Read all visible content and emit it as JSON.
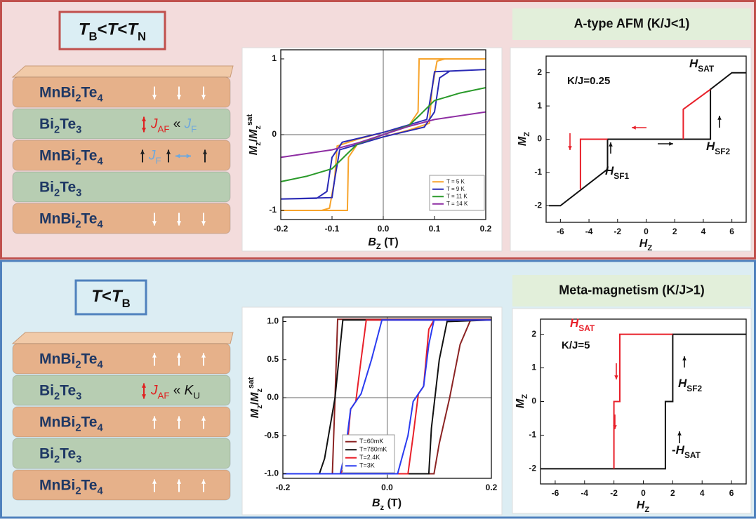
{
  "panels": [
    {
      "label": [
        {
          "it": "T"
        },
        {
          "sub": "B"
        },
        {
          "t": "<"
        },
        {
          "it": "T"
        },
        {
          "t": "<"
        },
        {
          "it": "T"
        },
        {
          "sub": "N"
        }
      ],
      "layers": [
        {
          "name": [
            {
              "t": "MnBi"
            },
            {
              "sub": "2"
            },
            {
              "t": "Te"
            },
            {
              "sub": "4"
            }
          ],
          "color": "#e6b18a"
        },
        {
          "name": [
            {
              "t": "Bi"
            },
            {
              "sub": "2"
            },
            {
              "t": "Te"
            },
            {
              "sub": "3"
            }
          ],
          "color": "#b7cdb2",
          "note": [
            {
              "it": "J",
              "color": "#e02020"
            },
            {
              "sub": "AF",
              "color": "#e02020"
            },
            {
              "t": " « "
            },
            {
              "it": "J",
              "color": "#6fa8dc"
            },
            {
              "sub": "F",
              "color": "#6fa8dc"
            }
          ]
        },
        {
          "name": [
            {
              "t": "MnBi"
            },
            {
              "sub": "2"
            },
            {
              "t": "Te"
            },
            {
              "sub": "4"
            }
          ],
          "color": "#e6b18a",
          "note": [
            {
              "it": "J",
              "color": "#6fa8dc"
            },
            {
              "sub": "F",
              "color": "#6fa8dc"
            }
          ]
        },
        {
          "name": [
            {
              "t": "Bi"
            },
            {
              "sub": "2"
            },
            {
              "t": "Te"
            },
            {
              "sub": "3"
            }
          ],
          "color": "#b7cdb2"
        },
        {
          "name": [
            {
              "t": "MnBi"
            },
            {
              "sub": "2"
            },
            {
              "t": "Te"
            },
            {
              "sub": "4"
            }
          ],
          "color": "#e6b18a"
        }
      ]
    },
    {
      "label": [
        {
          "it": "T"
        },
        {
          "t": "<"
        },
        {
          "it": "T"
        },
        {
          "sub": "B"
        }
      ],
      "layers": [
        {
          "name": [
            {
              "t": "MnBi"
            },
            {
              "sub": "2"
            },
            {
              "t": "Te"
            },
            {
              "sub": "4"
            }
          ],
          "color": "#e6b18a"
        },
        {
          "name": [
            {
              "t": "Bi"
            },
            {
              "sub": "2"
            },
            {
              "t": "Te"
            },
            {
              "sub": "3"
            }
          ],
          "color": "#b7cdb2",
          "note": [
            {
              "it": "J",
              "color": "#e02020"
            },
            {
              "sub": "AF",
              "color": "#e02020"
            },
            {
              "t": " « "
            },
            {
              "it": "K"
            },
            {
              "sub": "U"
            }
          ]
        },
        {
          "name": [
            {
              "t": "MnBi"
            },
            {
              "sub": "2"
            },
            {
              "t": "Te"
            },
            {
              "sub": "4"
            }
          ],
          "color": "#e6b18a"
        },
        {
          "name": [
            {
              "t": "Bi"
            },
            {
              "sub": "2"
            },
            {
              "t": "Te"
            },
            {
              "sub": "3"
            }
          ],
          "color": "#b7cdb2"
        },
        {
          "name": [
            {
              "t": "MnBi"
            },
            {
              "sub": "2"
            },
            {
              "t": "Te"
            },
            {
              "sub": "4"
            }
          ],
          "color": "#e6b18a"
        }
      ]
    }
  ],
  "chart_data": [
    {
      "type": "line",
      "x_label": [
        {
          "it": "B"
        },
        {
          "sub": "Z"
        },
        {
          "t": " (T)"
        }
      ],
      "y_label": [
        {
          "it": "M"
        },
        {
          "sub": "z"
        },
        {
          "t": "/"
        },
        {
          "it": "M"
        },
        {
          "sub": "z"
        },
        {
          "sup": "sat"
        }
      ],
      "xlim": [
        -0.2,
        0.2
      ],
      "ylim": [
        -1.12,
        1.12
      ],
      "xticks": [
        -0.2,
        -0.1,
        {
          "value": 0,
          "label": "0.0"
        },
        0.1,
        0.2
      ],
      "yticks": [
        -1,
        0,
        1
      ],
      "zero_lines": true,
      "legend": "lower right",
      "series": [
        {
          "name": "T = 5 K",
          "color": "#f7a42c",
          "x": [
            -0.2,
            -0.07,
            -0.068,
            -0.05,
            0,
            0.05,
            0.09,
            0.095,
            0.105,
            0.12,
            0.2,
            0.2,
            0.07,
            0.068,
            0.05,
            0,
            -0.05,
            -0.09,
            -0.095,
            -0.105,
            -0.12,
            -0.2
          ],
          "values": [
            -1,
            -1,
            -0.3,
            -0.12,
            -0.03,
            0.06,
            0.15,
            0.6,
            0.97,
            1,
            1,
            1,
            1,
            0.3,
            0.12,
            0.03,
            -0.06,
            -0.15,
            -0.6,
            -0.97,
            -1,
            -1
          ]
        },
        {
          "name": "T = 9 K",
          "color": "#2a2ab5",
          "x": [
            -0.2,
            -0.1,
            -0.095,
            -0.085,
            0,
            0.08,
            0.1,
            0.11,
            0.13,
            0.2,
            0.2,
            0.1,
            0.095,
            0.085,
            0,
            -0.08,
            -0.1,
            -0.11,
            -0.13,
            -0.2
          ],
          "values": [
            -0.85,
            -0.83,
            -0.6,
            -0.2,
            -0.03,
            0.1,
            0.3,
            0.75,
            0.84,
            0.86,
            0.86,
            0.83,
            0.6,
            0.2,
            0.03,
            -0.1,
            -0.3,
            -0.75,
            -0.84,
            -0.85
          ]
        },
        {
          "name": "T = 11 K",
          "color": "#2a9a2a",
          "x": [
            -0.2,
            -0.15,
            -0.1,
            -0.07,
            -0.05,
            0,
            0.05,
            0.07,
            0.1,
            0.15,
            0.2
          ],
          "values": [
            -0.62,
            -0.55,
            -0.45,
            -0.25,
            -0.12,
            0,
            0.12,
            0.25,
            0.45,
            0.55,
            0.62
          ]
        },
        {
          "name": "T = 14 K",
          "color": "#8e2ea3",
          "x": [
            -0.2,
            -0.1,
            -0.05,
            0,
            0.05,
            0.1,
            0.2
          ],
          "values": [
            -0.3,
            -0.2,
            -0.11,
            0,
            0.11,
            0.2,
            0.3
          ]
        }
      ]
    },
    {
      "type": "line",
      "title": "A-type AFM (K/J<1)",
      "x_label": [
        {
          "it": "H"
        },
        {
          "sub": "Z"
        }
      ],
      "y_label": [
        {
          "it": "M"
        },
        {
          "sub": "Z"
        }
      ],
      "xlim": [
        -7,
        7
      ],
      "ylim": [
        -2.5,
        2.5
      ],
      "xticks": [
        -6,
        -4,
        -2,
        0,
        2,
        4,
        6
      ],
      "yticks": [
        -2,
        -1,
        0,
        1,
        2
      ],
      "annotations": [
        [
          {
            "t": "K/J=0.25"
          }
        ],
        [
          {
            "it": "H"
          },
          {
            "sub": "SAT"
          }
        ],
        [
          {
            "it": "H"
          },
          {
            "sub": "SF1"
          }
        ],
        [
          {
            "it": "H"
          },
          {
            "sub": "SF2"
          }
        ]
      ],
      "series": [
        {
          "color": "#111111",
          "x": [
            -6.8,
            -6,
            -2.7,
            -2.7,
            4.5,
            4.5,
            6,
            7
          ],
          "values": [
            -2,
            -2,
            -0.9,
            0,
            0,
            1.5,
            2,
            2
          ]
        },
        {
          "color": "#e8202a",
          "x": [
            -4.6,
            -4.6,
            -2.7,
            null,
            2.6,
            2.6,
            4.5
          ],
          "values": [
            -1.5,
            0,
            0,
            null,
            0,
            0.9,
            1.5
          ]
        }
      ]
    },
    {
      "type": "line",
      "x_label": [
        {
          "it": "B"
        },
        {
          "sub": "z"
        },
        {
          "t": " (T)"
        }
      ],
      "y_label": [
        {
          "it": "M"
        },
        {
          "sub": "z"
        },
        {
          "t": "/"
        },
        {
          "it": "M"
        },
        {
          "sub": "z"
        },
        {
          "sup": "sat"
        }
      ],
      "xlim": [
        -0.2,
        0.2
      ],
      "ylim": [
        -1.06,
        1.06
      ],
      "xticks": [
        -0.2,
        {
          "value": 0,
          "label": "0.0"
        },
        0.2
      ],
      "yticks": [
        {
          "value": -1,
          "label": "-1.0"
        },
        -0.5,
        {
          "value": 0,
          "label": "0.0"
        },
        0.5,
        {
          "value": 1,
          "label": "1.0"
        }
      ],
      "zero_lines": true,
      "legend": "lower left",
      "series": [
        {
          "name": "T=60mK",
          "color": "#8b2323",
          "x": [
            -0.2,
            0.09,
            0.1,
            0.12,
            0.14,
            0.16,
            0.2,
            0.2,
            -0.095,
            -0.1,
            -0.105,
            -0.2
          ],
          "values": [
            -1,
            -1,
            -0.6,
            0,
            0.7,
            1.02,
            1.03,
            1.03,
            1.03,
            0,
            -1,
            -1
          ]
        },
        {
          "name": "T=780mK",
          "color": "#111111",
          "x": [
            -0.2,
            0.08,
            0.085,
            0.1,
            0.115,
            0.2,
            0.2,
            -0.085,
            -0.1,
            -0.12,
            -0.13,
            -0.2
          ],
          "values": [
            -1,
            -1,
            -0.4,
            0.5,
            1,
            1.02,
            1.02,
            1.02,
            0,
            -0.8,
            -1,
            -1
          ]
        },
        {
          "name": "T=2.4K",
          "color": "#e8202a",
          "x": [
            -0.2,
            0.04,
            0.05,
            0.06,
            0.07,
            0.08,
            0.09,
            0.2,
            0.2,
            -0.04,
            -0.05,
            -0.06,
            -0.07,
            -0.08,
            -0.09,
            -0.2
          ],
          "values": [
            -1,
            -1,
            -0.5,
            0.05,
            0.15,
            0.9,
            1.02,
            1.02,
            1.02,
            1.02,
            0.5,
            -0.05,
            -0.15,
            -0.9,
            -1,
            -1
          ]
        },
        {
          "name": "T=3K",
          "color": "#2a3cf0",
          "x": [
            -0.2,
            0.02,
            0.04,
            0.05,
            0.07,
            0.08,
            0.09,
            0.2,
            0.2,
            -0.01,
            -0.03,
            -0.05,
            -0.07,
            -0.08,
            -0.09,
            -0.2
          ],
          "values": [
            -1,
            -1,
            -0.5,
            -0.05,
            0.15,
            0.7,
            1.02,
            1.02,
            1.02,
            1.02,
            0.5,
            0.05,
            -0.15,
            -0.7,
            -1,
            -1
          ]
        }
      ]
    },
    {
      "type": "line",
      "title": "Meta-magnetism (K/J>1)",
      "x_label": [
        {
          "it": "H"
        },
        {
          "sub": "Z"
        }
      ],
      "y_label": [
        {
          "it": "M"
        },
        {
          "sub": "Z"
        }
      ],
      "xlim": [
        -7,
        7
      ],
      "ylim": [
        -2.45,
        2.45
      ],
      "xticks": [
        -6,
        -4,
        -2,
        0,
        2,
        4,
        6
      ],
      "yticks": [
        -2,
        -1,
        0,
        1,
        2
      ],
      "annotations": [
        [
          {
            "t": "K/J=5"
          }
        ],
        [
          {
            "it": "H",
            "color": "#e8202a"
          },
          {
            "sub": "SAT",
            "color": "#e8202a"
          }
        ],
        [
          {
            "it": "H"
          },
          {
            "sub": "SF2"
          }
        ],
        [
          {
            "t": "-"
          },
          {
            "it": "H"
          },
          {
            "sub": "SAT"
          }
        ]
      ],
      "series": [
        {
          "color": "#111111",
          "x": [
            -7,
            1.5,
            1.5,
            2,
            2,
            7
          ],
          "values": [
            -2,
            -2,
            0,
            0,
            2,
            2
          ]
        },
        {
          "color": "#e8202a",
          "x": [
            -2,
            -2,
            -1.6,
            -1.6,
            2
          ],
          "values": [
            -2,
            0,
            0,
            2,
            2
          ]
        }
      ]
    }
  ]
}
